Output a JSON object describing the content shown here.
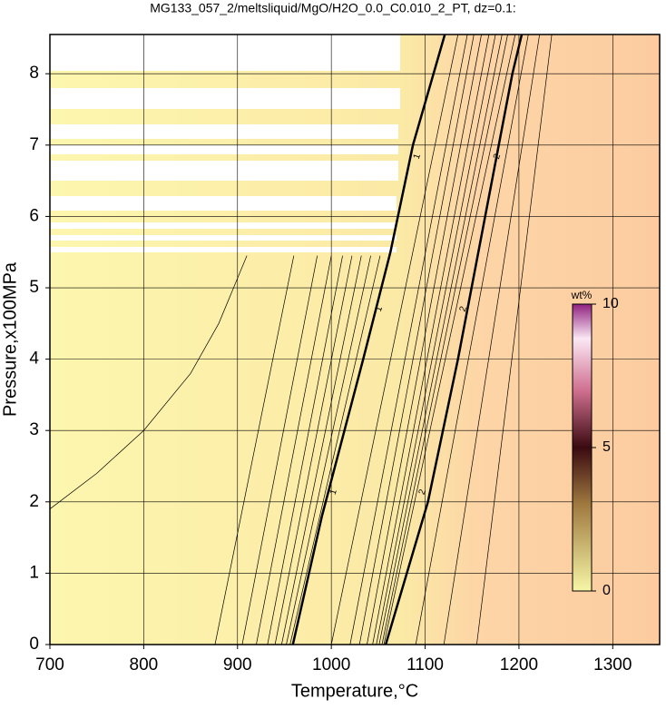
{
  "chart_data": {
    "type": "contour",
    "title": "MG133_057_2/meltsliquid/MgO/H2O_0.0_C0.010_2_PT, dz=0.1:",
    "x_label": "Temperature,°C",
    "y_label": "Pressure,x100MPa",
    "xlim": [
      700,
      1350
    ],
    "ylim": [
      0,
      8.55
    ],
    "xticks": [
      700,
      800,
      900,
      1000,
      1100,
      1200,
      1300
    ],
    "yticks": [
      0,
      1,
      2,
      3,
      4,
      5,
      6,
      7,
      8
    ],
    "grid": true,
    "line_color": "#000000",
    "contours": [
      {
        "level": 0.1,
        "x": [
          700,
          750,
          800,
          850,
          880,
          910
        ],
        "y": [
          1.9,
          2.4,
          3.0,
          3.8,
          4.5,
          5.45
        ]
      },
      {
        "level": 0.2,
        "x": [
          876,
          960
        ],
        "y": [
          0,
          5.45
        ]
      },
      {
        "level": 0.3,
        "x": [
          905,
          985
        ],
        "y": [
          0,
          5.45
        ]
      },
      {
        "level": 0.4,
        "x": [
          920,
          1000
        ],
        "y": [
          0,
          5.45
        ]
      },
      {
        "level": 0.5,
        "x": [
          932,
          1012
        ],
        "y": [
          0,
          5.45
        ]
      },
      {
        "level": 0.6,
        "x": [
          940,
          1022
        ],
        "y": [
          0,
          5.45
        ]
      },
      {
        "level": 0.7,
        "x": [
          947,
          1032
        ],
        "y": [
          0,
          5.45
        ]
      },
      {
        "level": 0.8,
        "x": [
          952,
          1042
        ],
        "y": [
          0,
          5.45
        ]
      },
      {
        "level": 0.9,
        "x": [
          956,
          1052
        ],
        "y": [
          0,
          5.45
        ]
      },
      {
        "level": 1,
        "x": [
          959,
          990,
          1034,
          1063,
          1087,
          1121
        ],
        "y": [
          0,
          1.8,
          4,
          5.5,
          7,
          8.55
        ]
      },
      {
        "level": 1.1,
        "x": [
          1000,
          1135
        ],
        "y": [
          0,
          8.55
        ]
      },
      {
        "level": 1.2,
        "x": [
          1020,
          1145
        ],
        "y": [
          0,
          8.55
        ]
      },
      {
        "level": 1.3,
        "x": [
          1030,
          1152
        ],
        "y": [
          0,
          8.55
        ]
      },
      {
        "level": 1.4,
        "x": [
          1038,
          1160
        ],
        "y": [
          0,
          8.55
        ]
      },
      {
        "level": 1.5,
        "x": [
          1044,
          1168
        ],
        "y": [
          0,
          8.55
        ]
      },
      {
        "level": 1.6,
        "x": [
          1048,
          1175
        ],
        "y": [
          0,
          8.55
        ]
      },
      {
        "level": 1.7,
        "x": [
          1051,
          1182
        ],
        "y": [
          0,
          8.55
        ]
      },
      {
        "level": 1.8,
        "x": [
          1054,
          1188
        ],
        "y": [
          0,
          8.55
        ]
      },
      {
        "level": 1.9,
        "x": [
          1056,
          1196
        ],
        "y": [
          0,
          8.55
        ]
      },
      {
        "level": 2,
        "x": [
          1058,
          1103,
          1135,
          1164,
          1193,
          1203
        ],
        "y": [
          0,
          2,
          4,
          6,
          8,
          8.55
        ]
      },
      {
        "level": 2.1,
        "x": [
          1090,
          1210
        ],
        "y": [
          0,
          8.55
        ]
      },
      {
        "level": 2.2,
        "x": [
          1120,
          1222
        ],
        "y": [
          0,
          8.55
        ]
      },
      {
        "level": 2.3,
        "x": [
          1155,
          1235
        ],
        "y": [
          0,
          8.55
        ]
      }
    ],
    "colorbar": {
      "label": "wt%",
      "lim": [
        0,
        10
      ],
      "ticks": [
        0,
        5,
        10
      ]
    }
  }
}
